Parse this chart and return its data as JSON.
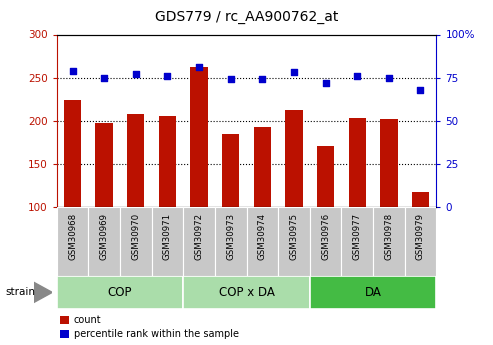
{
  "title": "GDS779 / rc_AA900762_at",
  "samples": [
    "GSM30968",
    "GSM30969",
    "GSM30970",
    "GSM30971",
    "GSM30972",
    "GSM30973",
    "GSM30974",
    "GSM30975",
    "GSM30976",
    "GSM30977",
    "GSM30978",
    "GSM30979"
  ],
  "counts": [
    224,
    197,
    208,
    206,
    262,
    185,
    193,
    212,
    171,
    203,
    202,
    117
  ],
  "percentiles": [
    79,
    75,
    77,
    76,
    81,
    74,
    74,
    78,
    72,
    76,
    75,
    68
  ],
  "groups": [
    {
      "label": "COP",
      "start": 0,
      "end": 4
    },
    {
      "label": "COP x DA",
      "start": 4,
      "end": 8
    },
    {
      "label": "DA",
      "start": 8,
      "end": 12
    }
  ],
  "group_colors": [
    "#aaddaa",
    "#aaddaa",
    "#44bb44"
  ],
  "bar_color": "#BB1100",
  "dot_color": "#0000CC",
  "ylim_left": [
    100,
    300
  ],
  "ylim_right": [
    0,
    100
  ],
  "yticks_left": [
    100,
    150,
    200,
    250,
    300
  ],
  "yticks_right": [
    0,
    25,
    50,
    75,
    100
  ],
  "ytick_labels_right": [
    "0",
    "25",
    "50",
    "75",
    "100%"
  ],
  "grid_lines": [
    150,
    200,
    250
  ],
  "tick_label_bg": "#C8C8C8",
  "legend_items": [
    {
      "label": "count",
      "color": "#BB1100"
    },
    {
      "label": "percentile rank within the sample",
      "color": "#0000CC"
    }
  ],
  "strain_label": "strain",
  "title_fontsize": 10,
  "bar_bottom": 100
}
